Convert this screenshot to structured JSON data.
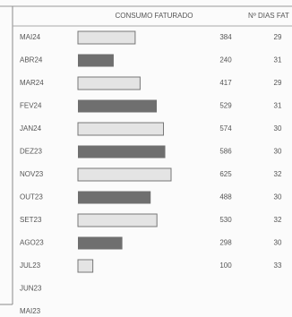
{
  "chart_data": {
    "type": "bar",
    "orientation": "horizontal",
    "headers": [
      "CONSUMO FATURADO",
      "Nº DIAS FAT"
    ],
    "categories": [
      "MAI24",
      "ABR24",
      "MAR24",
      "FEV24",
      "JAN24",
      "DEZ23",
      "NOV23",
      "OUT23",
      "SET23",
      "AGO23",
      "JUL23",
      "JUN23",
      "MAI23"
    ],
    "values": [
      384,
      240,
      417,
      529,
      574,
      586,
      625,
      488,
      530,
      298,
      100,
      null,
      null
    ],
    "days": [
      29,
      31,
      29,
      31,
      30,
      30,
      32,
      30,
      32,
      30,
      33,
      null,
      null
    ],
    "colors": [
      "#e4e4e4",
      "#6f6f6f"
    ]
  }
}
